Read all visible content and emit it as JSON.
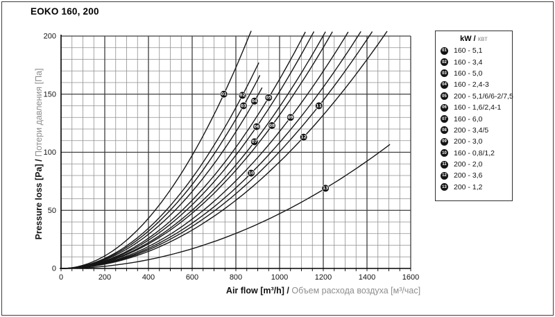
{
  "page": {
    "title": "EOKO 160, 200"
  },
  "legend": {
    "header_kw": "kW",
    "header_sep": " / ",
    "header_kvt": "квт"
  },
  "chart_data": {
    "type": "line",
    "title": "EOKO 160, 200",
    "xlabel_en": "Air flow [m³/h]",
    "xlabel_sep": " / ",
    "xlabel_ru": "Объем расхода воздуха [м³/час]",
    "ylabel_en": "Pressure loss [Pa]",
    "ylabel_sep": " / ",
    "ylabel_ru": "Потери давления [Па]",
    "xlim": [
      0,
      1600
    ],
    "ylim": [
      0,
      200
    ],
    "x_ticks": [
      0,
      200,
      400,
      600,
      800,
      1000,
      1200,
      1400,
      1600
    ],
    "y_ticks": [
      0,
      50,
      100,
      150,
      200
    ],
    "grid": {
      "x_minor": 50,
      "x_major": 200,
      "y_minor": 10,
      "y_major": 50,
      "on": true
    },
    "legend_position": "right",
    "curve_model": "y = k·x^2 through origin, k = marker.y / marker.x^2",
    "series": [
      {
        "num": "01",
        "label": "160 - 5,1",
        "marker": {
          "x": 745,
          "y": 150
        },
        "x_end": 870
      },
      {
        "num": "02",
        "label": "160 - 3,4",
        "marker": {
          "x": 830,
          "y": 149
        },
        "x_end": 905
      },
      {
        "num": "03",
        "label": "160 - 5,0",
        "marker": {
          "x": 835,
          "y": 140
        },
        "x_end": 910
      },
      {
        "num": "04",
        "label": "160 - 2,4-3",
        "marker": {
          "x": 885,
          "y": 144
        },
        "x_end": 920
      },
      {
        "num": "05",
        "label": "200 - 5,1/6/6-2/7,5",
        "marker": {
          "x": 950,
          "y": 147
        },
        "x_end": 1118
      },
      {
        "num": "06",
        "label": "160 - 1,6/2,4-1",
        "marker": {
          "x": 895,
          "y": 122
        },
        "x_end": 1157
      },
      {
        "num": "07",
        "label": "160 - 6,0",
        "marker": {
          "x": 885,
          "y": 109
        },
        "x_end": 1210
      },
      {
        "num": "08",
        "label": "200 - 3,4/5",
        "marker": {
          "x": 965,
          "y": 123
        },
        "x_end": 1242
      },
      {
        "num": "09",
        "label": "200 - 3,0",
        "marker": {
          "x": 1050,
          "y": 130
        },
        "x_end": 1314
      },
      {
        "num": "10",
        "label": "160 - 0,8/1,2",
        "marker": {
          "x": 870,
          "y": 82
        },
        "x_end": 1372
      },
      {
        "num": "11",
        "label": "200 - 2,0",
        "marker": {
          "x": 1180,
          "y": 140
        },
        "x_end": 1424
      },
      {
        "num": "12",
        "label": "200 - 3,6",
        "marker": {
          "x": 1110,
          "y": 113
        },
        "x_end": 1492
      },
      {
        "num": "13",
        "label": "200 - 1,2",
        "marker": {
          "x": 1210,
          "y": 69
        },
        "x_end": 1505
      }
    ]
  },
  "colors": {
    "curve": "#161616",
    "grid_minor": "#8f8f8f",
    "grid_major": "#3d3d3d",
    "axis": "#000000",
    "text": "#111111",
    "text_gray": "#8d8d8d",
    "marker_fill": "#141414",
    "marker_text": "#ffffff"
  }
}
